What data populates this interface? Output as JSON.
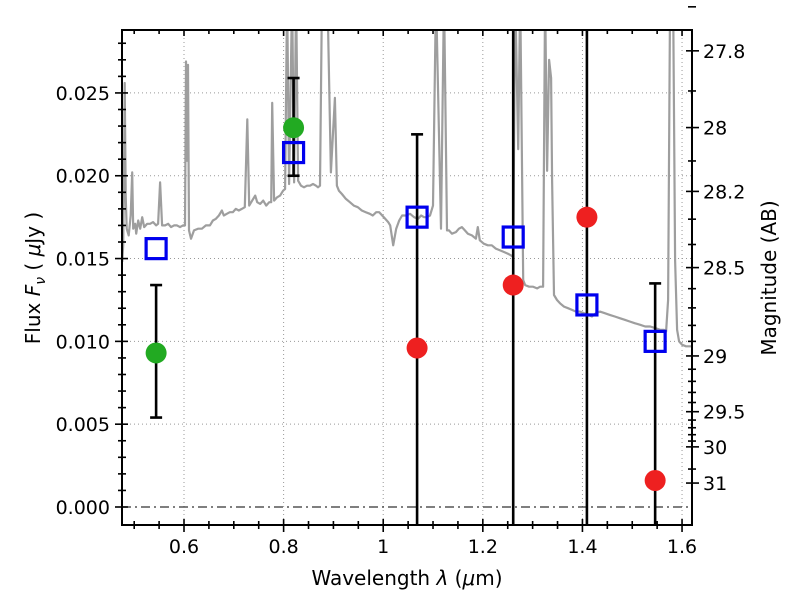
{
  "chart_data": {
    "type": "line+scatter",
    "title": "",
    "xlabel": "Wavelength λ (μm)",
    "ylabel_left": "Flux Fν ( μJy )",
    "ylabel_right": "Magnitude (AB)",
    "xlim": [
      0.4755,
      1.62
    ],
    "ylim": [
      -0.001087,
      0.0288
    ],
    "grid": true,
    "labels": {
      "x_prefix": "Wavelength ",
      "x_lambda": "λ",
      "x_unit_open": " (",
      "x_mu": "μ",
      "x_unit_close": "m)",
      "y_left_prefix": "Flux ",
      "y_left_F": "F",
      "y_left_nu": "ν",
      "y_left_open": " ( ",
      "y_left_mu": "μ",
      "y_left_unit": "Jy )",
      "y_right": "Magnitude (AB)"
    },
    "x_ticks": {
      "major": [
        0.6,
        0.8,
        1.0,
        1.2,
        1.4,
        1.6
      ],
      "labels": [
        "0.6",
        "0.8",
        "1",
        "1.2",
        "1.4",
        "1.6"
      ],
      "minor": [
        0.5,
        0.55,
        0.65,
        0.7,
        0.75,
        0.85,
        0.9,
        0.95,
        1.05,
        1.1,
        1.15,
        1.25,
        1.3,
        1.35,
        1.45,
        1.5,
        1.55
      ]
    },
    "y_ticks_left": {
      "major": [
        0.0,
        0.005,
        0.01,
        0.015,
        0.02,
        0.025
      ],
      "labels": [
        "0.000",
        "0.005",
        "0.010",
        "0.015",
        "0.020",
        "0.025"
      ],
      "minor": [
        0.001,
        0.002,
        0.003,
        0.004,
        0.006,
        0.007,
        0.008,
        0.009,
        0.011,
        0.012,
        0.013,
        0.014,
        0.016,
        0.017,
        0.018,
        0.019,
        0.021,
        0.022,
        0.023,
        0.024,
        0.026,
        0.027,
        0.028
      ]
    },
    "y_ticks_right": {
      "ab_zeropoint": 23.9,
      "major_mags": [
        27.8,
        28,
        28.2,
        28.5,
        29,
        29.5,
        30,
        31
      ],
      "labels": [
        "27.8",
        "28",
        "28.2",
        "28.5",
        "29",
        "29.5",
        "30",
        "31"
      ],
      "minor_mags": [
        27.7,
        27.9,
        28.1,
        28.3,
        28.4,
        28.6,
        28.7,
        28.8,
        28.9,
        29.1,
        29.2,
        29.3,
        29.4,
        29.6,
        29.7,
        29.8,
        29.9,
        30.5
      ]
    },
    "zero_line": {
      "y": 0.0,
      "style": "dash-dot",
      "color": "#333333"
    },
    "colors": {
      "spectrum": "#9e9e9e",
      "blue_square": "#0000ee",
      "green_circle": "#22aa22",
      "red_circle": "#ee2020",
      "error_bar": "#000000",
      "grid": "#999999",
      "frame": "#000000"
    },
    "series": {
      "spectrum": {
        "name": "model-spectrum",
        "points": [
          [
            0.476,
            0.0148
          ],
          [
            0.478,
            0.0158
          ],
          [
            0.48,
            0.0216
          ],
          [
            0.481,
            0.0256
          ],
          [
            0.483,
            0.0188
          ],
          [
            0.485,
            0.0168
          ],
          [
            0.489,
            0.0164
          ],
          [
            0.493,
            0.0176
          ],
          [
            0.496,
            0.0202
          ],
          [
            0.498,
            0.0168
          ],
          [
            0.502,
            0.0171
          ],
          [
            0.504,
            0.0165
          ],
          [
            0.508,
            0.0173
          ],
          [
            0.512,
            0.0168
          ],
          [
            0.516,
            0.0175
          ],
          [
            0.52,
            0.0169
          ],
          [
            0.526,
            0.0171
          ],
          [
            0.532,
            0.0171
          ],
          [
            0.538,
            0.0172
          ],
          [
            0.544,
            0.017
          ],
          [
            0.548,
            0.0171
          ],
          [
            0.552,
            0.0196
          ],
          [
            0.556,
            0.017
          ],
          [
            0.562,
            0.017
          ],
          [
            0.568,
            0.0171
          ],
          [
            0.574,
            0.0169
          ],
          [
            0.58,
            0.017
          ],
          [
            0.586,
            0.017
          ],
          [
            0.592,
            0.0169
          ],
          [
            0.598,
            0.017
          ],
          [
            0.602,
            0.017
          ],
          [
            0.604,
            0.0269
          ],
          [
            0.606,
            0.0209
          ],
          [
            0.608,
            0.0267
          ],
          [
            0.61,
            0.0167
          ],
          [
            0.614,
            0.0162
          ],
          [
            0.62,
            0.0167
          ],
          [
            0.628,
            0.0168
          ],
          [
            0.636,
            0.0168
          ],
          [
            0.644,
            0.017
          ],
          [
            0.652,
            0.017
          ],
          [
            0.658,
            0.0173
          ],
          [
            0.664,
            0.0174
          ],
          [
            0.67,
            0.0176
          ],
          [
            0.676,
            0.0179
          ],
          [
            0.68,
            0.0176
          ],
          [
            0.686,
            0.0177
          ],
          [
            0.692,
            0.0178
          ],
          [
            0.698,
            0.0178
          ],
          [
            0.704,
            0.018
          ],
          [
            0.71,
            0.0179
          ],
          [
            0.716,
            0.018
          ],
          [
            0.722,
            0.0181
          ],
          [
            0.727,
            0.0234
          ],
          [
            0.731,
            0.0182
          ],
          [
            0.737,
            0.0185
          ],
          [
            0.743,
            0.0188
          ],
          [
            0.747,
            0.0184
          ],
          [
            0.753,
            0.0183
          ],
          [
            0.759,
            0.0185
          ],
          [
            0.765,
            0.0182
          ],
          [
            0.771,
            0.0184
          ],
          [
            0.775,
            0.0184
          ],
          [
            0.777,
            0.0244
          ],
          [
            0.781,
            0.0185
          ],
          [
            0.787,
            0.0187
          ],
          [
            0.793,
            0.0188
          ],
          [
            0.799,
            0.0191
          ],
          [
            0.803,
            0.0192
          ],
          [
            0.807,
            0.031
          ],
          [
            0.811,
            0.0195
          ],
          [
            0.817,
            0.031
          ],
          [
            0.821,
            0.0196
          ],
          [
            0.825,
            0.031
          ],
          [
            0.829,
            0.0197
          ],
          [
            0.835,
            0.0194
          ],
          [
            0.841,
            0.0193
          ],
          [
            0.847,
            0.0194
          ],
          [
            0.853,
            0.0194
          ],
          [
            0.859,
            0.0195
          ],
          [
            0.865,
            0.0194
          ],
          [
            0.869,
            0.0193
          ],
          [
            0.873,
            0.0194
          ],
          [
            0.877,
            0.031
          ],
          [
            0.888,
            0.031
          ],
          [
            0.895,
            0.0202
          ],
          [
            0.903,
            0.0247
          ],
          [
            0.907,
            0.0194
          ],
          [
            0.911,
            0.0191
          ],
          [
            0.917,
            0.0189
          ],
          [
            0.925,
            0.0186
          ],
          [
            0.933,
            0.0184
          ],
          [
            0.941,
            0.0182
          ],
          [
            0.949,
            0.0181
          ],
          [
            0.957,
            0.0179
          ],
          [
            0.965,
            0.0178
          ],
          [
            0.973,
            0.0177
          ],
          [
            0.979,
            0.0176
          ],
          [
            0.986,
            0.0178
          ],
          [
            0.992,
            0.0178
          ],
          [
            0.998,
            0.0176
          ],
          [
            1.004,
            0.0174
          ],
          [
            1.01,
            0.0172
          ],
          [
            1.014,
            0.017
          ],
          [
            1.02,
            0.0158
          ],
          [
            1.026,
            0.0168
          ],
          [
            1.032,
            0.0173
          ],
          [
            1.038,
            0.0176
          ],
          [
            1.046,
            0.0176
          ],
          [
            1.054,
            0.0177
          ],
          [
            1.062,
            0.0175
          ],
          [
            1.07,
            0.0174
          ],
          [
            1.076,
            0.0176
          ],
          [
            1.082,
            0.0175
          ],
          [
            1.088,
            0.0175
          ],
          [
            1.094,
            0.0176
          ],
          [
            1.1,
            0.0182
          ],
          [
            1.106,
            0.031
          ],
          [
            1.116,
            0.0168
          ],
          [
            1.122,
            0.031
          ],
          [
            1.128,
            0.0167
          ],
          [
            1.132,
            0.0167
          ],
          [
            1.138,
            0.0165
          ],
          [
            1.146,
            0.0166
          ],
          [
            1.152,
            0.0168
          ],
          [
            1.158,
            0.0169
          ],
          [
            1.164,
            0.0167
          ],
          [
            1.17,
            0.0165
          ],
          [
            1.178,
            0.0164
          ],
          [
            1.186,
            0.0162
          ],
          [
            1.19,
            0.0169
          ],
          [
            1.194,
            0.0161
          ],
          [
            1.202,
            0.0159
          ],
          [
            1.21,
            0.0158
          ],
          [
            1.218,
            0.0158
          ],
          [
            1.226,
            0.0156
          ],
          [
            1.234,
            0.0155
          ],
          [
            1.242,
            0.0154
          ],
          [
            1.25,
            0.0153
          ],
          [
            1.256,
            0.0152
          ],
          [
            1.261,
            0.0151
          ],
          [
            1.265,
            0.031
          ],
          [
            1.271,
            0.0216
          ],
          [
            1.275,
            0.031
          ],
          [
            1.281,
            0.0137
          ],
          [
            1.285,
            0.0134
          ],
          [
            1.293,
            0.0133
          ],
          [
            1.301,
            0.0133
          ],
          [
            1.309,
            0.0132
          ],
          [
            1.315,
            0.0133
          ],
          [
            1.321,
            0.0133
          ],
          [
            1.325,
            0.031
          ],
          [
            1.329,
            0.0203
          ],
          [
            1.333,
            0.027
          ],
          [
            1.337,
            0.0259
          ],
          [
            1.339,
            0.0197
          ],
          [
            1.343,
            0.0128
          ],
          [
            1.349,
            0.0125
          ],
          [
            1.355,
            0.0123
          ],
          [
            1.363,
            0.0121
          ],
          [
            1.371,
            0.012
          ],
          [
            1.379,
            0.0119
          ],
          [
            1.387,
            0.0118
          ],
          [
            1.395,
            0.0118
          ],
          [
            1.403,
            0.0117
          ],
          [
            1.411,
            0.0116
          ],
          [
            1.419,
            0.0115
          ],
          [
            1.427,
            0.0117
          ],
          [
            1.435,
            0.0118
          ],
          [
            1.445,
            0.0117
          ],
          [
            1.455,
            0.0116
          ],
          [
            1.465,
            0.0115
          ],
          [
            1.475,
            0.0114
          ],
          [
            1.485,
            0.0113
          ],
          [
            1.495,
            0.0112
          ],
          [
            1.505,
            0.0111
          ],
          [
            1.516,
            0.011
          ],
          [
            1.526,
            0.0109
          ],
          [
            1.536,
            0.0109
          ],
          [
            1.546,
            0.0108
          ],
          [
            1.556,
            0.0107
          ],
          [
            1.564,
            0.0107
          ],
          [
            1.568,
            0.0106
          ],
          [
            1.572,
            0.0125
          ],
          [
            1.576,
            0.031
          ],
          [
            1.582,
            0.031
          ],
          [
            1.586,
            0.0149
          ],
          [
            1.59,
            0.0107
          ],
          [
            1.594,
            0.01
          ],
          [
            1.6,
            0.0098
          ],
          [
            1.608,
            0.0097
          ],
          [
            1.62,
            0.0097
          ]
        ]
      },
      "blue_squares": {
        "name": "photometry-open-squares",
        "marker": "open-square",
        "points": [
          [
            0.544,
            0.0156
          ],
          [
            0.82,
            0.0214
          ],
          [
            1.068,
            0.0175
          ],
          [
            1.261,
            0.0163
          ],
          [
            1.409,
            0.0122
          ],
          [
            1.546,
            0.01
          ]
        ]
      },
      "green_circles": {
        "name": "photometry-green-circles",
        "marker": "filled-circle",
        "points": [
          [
            0.544,
            0.0093
          ],
          [
            0.82,
            0.0229
          ]
        ]
      },
      "red_circles": {
        "name": "photometry-red-circles",
        "marker": "filled-circle",
        "points": [
          [
            1.068,
            0.0096
          ],
          [
            1.261,
            0.0134
          ],
          [
            1.409,
            0.0175
          ],
          [
            1.546,
            0.0016
          ]
        ]
      },
      "error_bars": [
        {
          "x": 0.544,
          "y": 0.0093,
          "lo": 0.0054,
          "hi": 0.0134,
          "cap_lo": true,
          "cap_hi": true
        },
        {
          "x": 0.82,
          "y": 0.0229,
          "lo": 0.02,
          "hi": 0.0259,
          "cap_lo": true,
          "cap_hi": true
        },
        {
          "x": 1.068,
          "y": 0.0096,
          "lo": -0.003,
          "hi": 0.0225,
          "cap_lo": false,
          "cap_hi": true
        },
        {
          "x": 1.261,
          "y": 0.0134,
          "lo": -0.003,
          "hi": 0.032,
          "cap_lo": false,
          "cap_hi": false
        },
        {
          "x": 1.409,
          "y": 0.0175,
          "lo": -0.003,
          "hi": 0.032,
          "cap_lo": false,
          "cap_hi": false
        },
        {
          "x": 1.546,
          "y": 0.0016,
          "lo": -0.003,
          "hi": 0.0135,
          "cap_lo": false,
          "cap_hi": true
        }
      ]
    }
  }
}
